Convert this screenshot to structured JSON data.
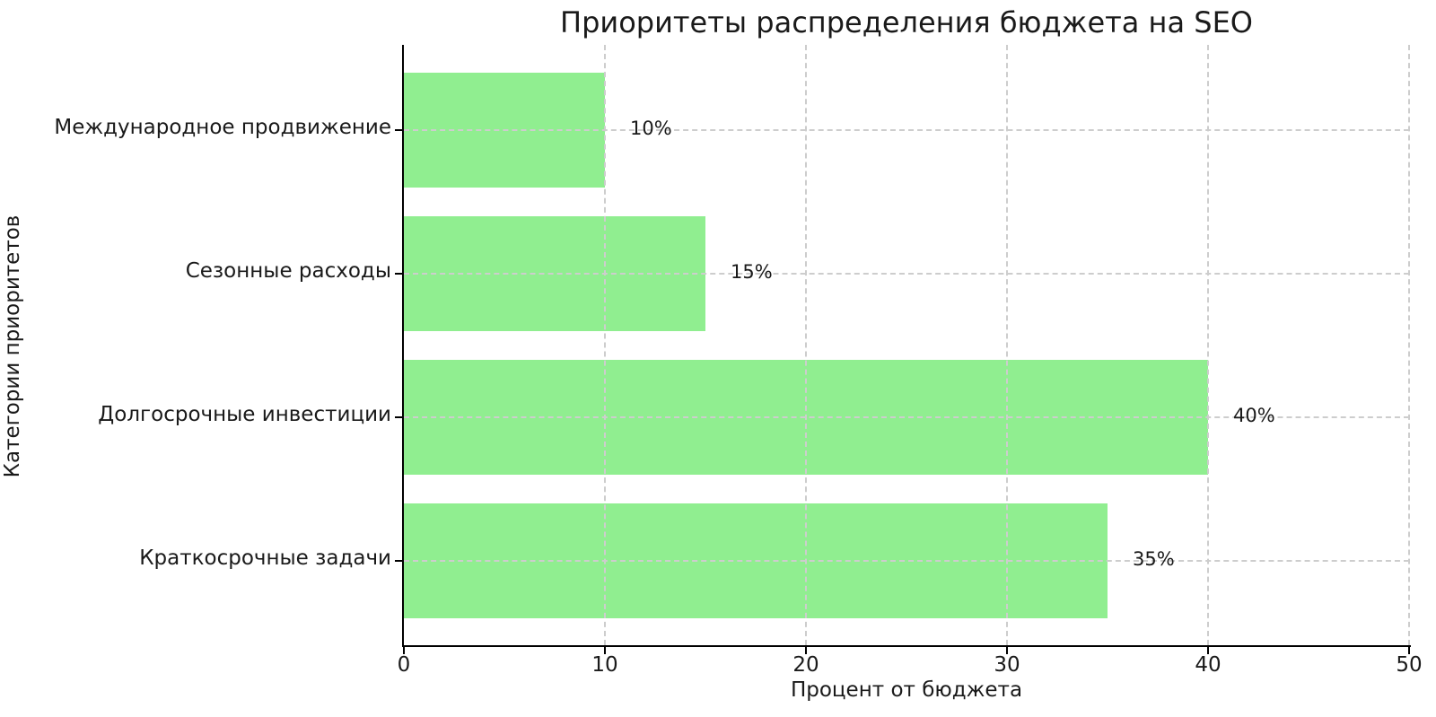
{
  "chart_data": {
    "type": "bar",
    "orientation": "horizontal",
    "title": "Приоритеты распределения бюджета на SEO",
    "xlabel": "Процент от бюджета",
    "ylabel": "Категории приоритетов",
    "categories": [
      "Международное продвижение",
      "Сезонные расходы",
      "Долгосрочные инвестиции",
      "Краткосрочные задачи"
    ],
    "values": [
      10,
      15,
      40,
      35
    ],
    "value_labels": [
      "10%",
      "15%",
      "40%",
      "35%"
    ],
    "xlim": [
      0,
      50
    ],
    "xticks": [
      0,
      10,
      20,
      30,
      40,
      50
    ],
    "bar_color": "#90EE90",
    "grid_style": "dashed",
    "grid_color": "#cdcdcd",
    "axis_color": "#000000",
    "text_color": "#1a1a1a",
    "background_color": "#ffffff",
    "legend": "none"
  }
}
